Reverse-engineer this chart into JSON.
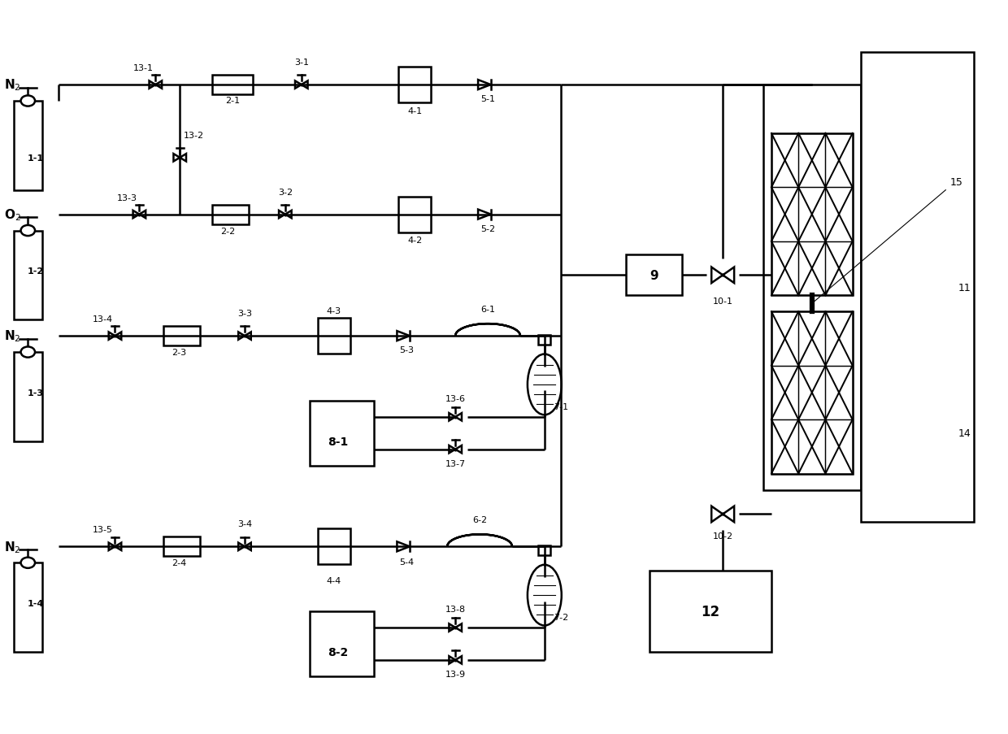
{
  "bg_color": "#ffffff",
  "line_color": "#000000",
  "line_width": 1.8,
  "fig_width": 12.4,
  "fig_height": 9.04
}
